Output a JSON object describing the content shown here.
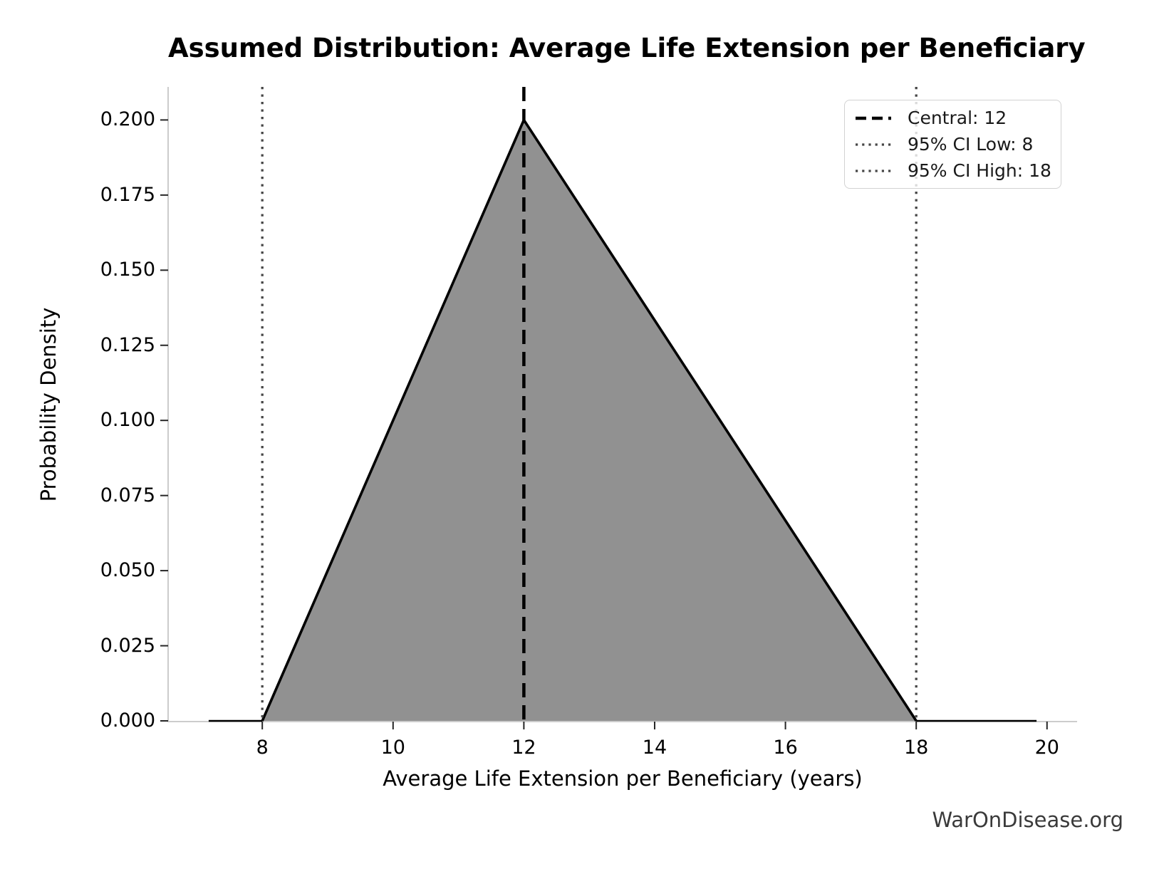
{
  "title": "Assumed Distribution: Average Life Extension per Beneficiary",
  "watermark": "WarOnDisease.org",
  "axes": {
    "xlabel": "Average Life Extension per Beneficiary (years)",
    "ylabel": "Probability Density",
    "x_ticks": [
      8,
      10,
      12,
      14,
      16,
      18,
      20
    ],
    "y_ticks": [
      "0.000",
      "0.025",
      "0.050",
      "0.075",
      "0.100",
      "0.125",
      "0.150",
      "0.175",
      "0.200"
    ],
    "grid": false
  },
  "legend": {
    "position": "upper right",
    "items": [
      {
        "label": "Central: 12",
        "style": "dashed",
        "color": "#000000"
      },
      {
        "label": "95% CI Low: 8",
        "style": "dotted",
        "color": "#464646"
      },
      {
        "label": "95% CI High: 18",
        "style": "dotted",
        "color": "#464646"
      }
    ]
  },
  "chart_data": {
    "type": "area",
    "distribution": "triangular",
    "title": "Assumed Distribution: Average Life Extension per Beneficiary",
    "xlabel": "Average Life Extension per Beneficiary (years)",
    "ylabel": "Probability Density",
    "triangle": {
      "left": 8,
      "mode": 12,
      "right": 18,
      "peak_density": 0.2
    },
    "central": 12,
    "ci_low": 8,
    "ci_high": 18,
    "line_extends": {
      "left": 7.18,
      "right": 19.84
    },
    "x": [
      7.18,
      8,
      12,
      18,
      19.84
    ],
    "y": [
      0,
      0,
      0.2,
      0,
      0
    ],
    "xlim": [
      6.56,
      20.46
    ],
    "ylim": [
      0,
      0.211
    ],
    "vlines": [
      {
        "x": 12,
        "style": "dashed",
        "color": "#000000",
        "label": "Central: 12"
      },
      {
        "x": 8,
        "style": "dotted",
        "color": "#464646",
        "label": "95% CI Low: 8"
      },
      {
        "x": 18,
        "style": "dotted",
        "color": "#464646",
        "label": "95% CI High: 18"
      }
    ],
    "colors": {
      "fill": "#919191",
      "pdf_line": "#000000",
      "spine": "#cccccc",
      "tick": "#262626"
    }
  }
}
